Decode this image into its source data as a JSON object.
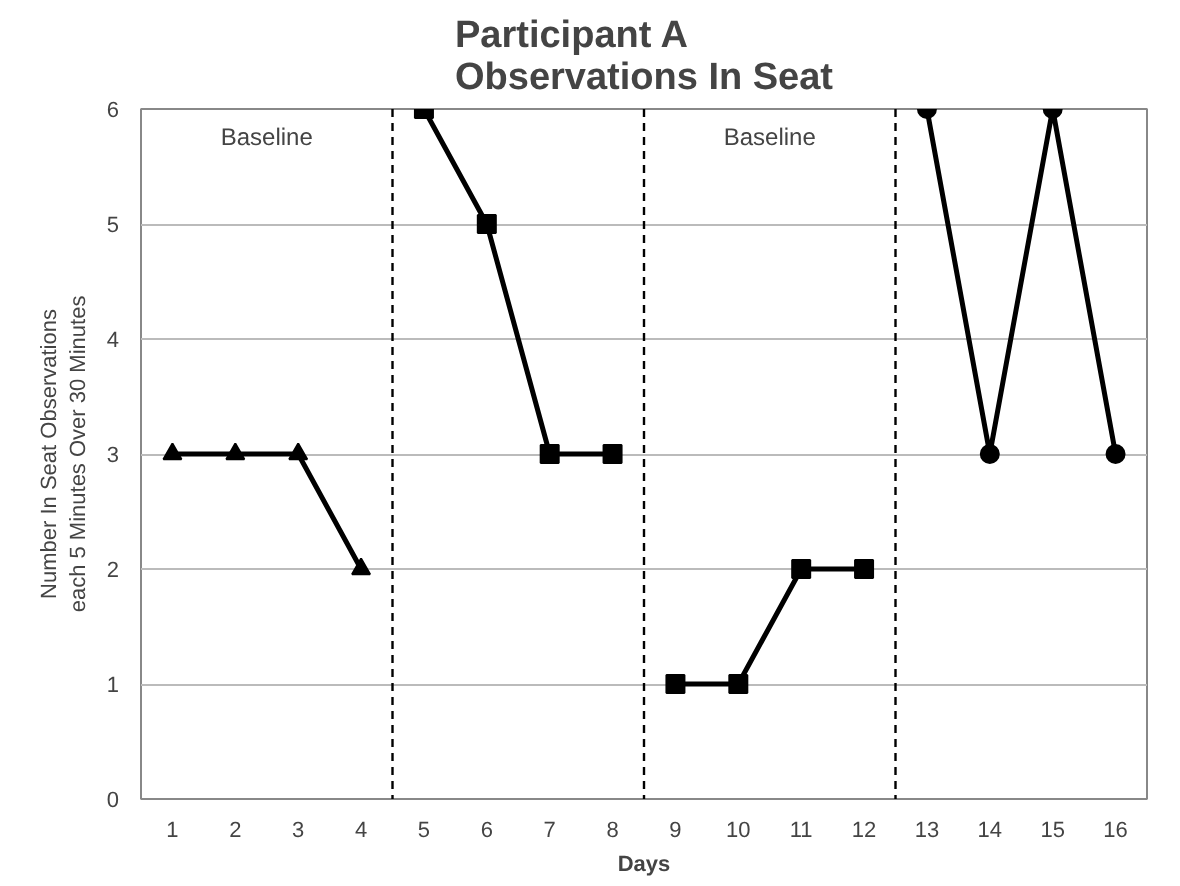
{
  "chart_data": {
    "type": "line",
    "title": "Participant A\nObservations In Seat",
    "xlabel": "Days",
    "ylabel": "Number In Seat Observations\neach 5 Minutes Over 30 Minutes",
    "xlim": [
      0.5,
      16.5
    ],
    "xticks": [
      1,
      2,
      3,
      4,
      5,
      6,
      7,
      8,
      9,
      10,
      11,
      12,
      13,
      14,
      15,
      16
    ],
    "ylim": [
      0,
      6
    ],
    "yticks": [
      0,
      1,
      2,
      3,
      4,
      5,
      6
    ],
    "grid": "y",
    "series": [
      {
        "color": "#000000",
        "marker": "triangle",
        "x": [
          1,
          2,
          3,
          4
        ],
        "values": [
          3,
          3,
          3,
          2
        ]
      },
      {
        "color": "#000000",
        "marker": "square",
        "x": [
          5,
          6,
          7,
          8
        ],
        "values": [
          6,
          5,
          3,
          3
        ]
      },
      {
        "color": "#000000",
        "marker": "square",
        "x": [
          9,
          10,
          11,
          12
        ],
        "values": [
          1,
          1,
          2,
          2
        ]
      },
      {
        "color": "#000000",
        "marker": "circle",
        "x": [
          13,
          14,
          15,
          16
        ],
        "values": [
          6,
          3,
          6,
          3
        ]
      }
    ],
    "ref_lines": [
      {
        "axis": "x",
        "value": 4.5,
        "line_style": "dashed"
      },
      {
        "axis": "x",
        "value": 8.5,
        "line_style": "dashed"
      },
      {
        "axis": "x",
        "value": 12.5,
        "line_style": "dashed"
      }
    ],
    "annotations": [
      "Baseline",
      "Baseline"
    ]
  }
}
